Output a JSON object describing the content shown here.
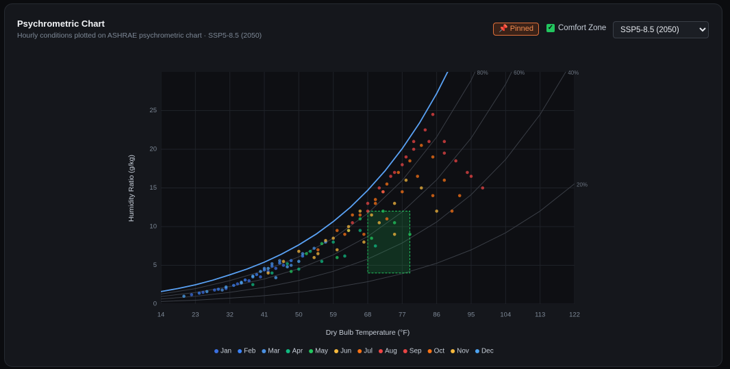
{
  "header": {
    "title": "Psychrometric Chart",
    "subtitle": "Hourly conditions plotted on ASHRAE psychrometric chart · SSP5-8.5 (2050)"
  },
  "controls": {
    "pinned": "📌 Pinned",
    "comfort_zone_label": "Comfort Zone",
    "comfort_zone_checked": true,
    "scenario": "SSP5-8.5 (2050)"
  },
  "chart_data": {
    "type": "scatter",
    "x_label": "Dry Bulb Temperature (°F)",
    "y_label": "Humidity Ratio (g/kg)",
    "xlim": [
      14,
      122
    ],
    "ylim": [
      0,
      30
    ],
    "xticks": [
      14,
      23,
      32,
      41,
      50,
      59,
      68,
      77,
      86,
      95,
      104,
      113,
      122
    ],
    "yticks": [
      0,
      5,
      10,
      15,
      20,
      25
    ],
    "grid": true,
    "saturation": {
      "color": "#5aa2f5",
      "x": [
        14,
        18.5,
        23,
        27.5,
        32,
        36.5,
        41,
        45.5,
        50,
        54.5,
        59,
        63.5,
        68,
        72.5,
        77,
        81.5,
        86,
        90.5
      ],
      "values": [
        1.6,
        2.0,
        2.48,
        3.07,
        3.77,
        4.52,
        5.4,
        6.44,
        7.64,
        9.02,
        10.65,
        12.52,
        14.7,
        17.2,
        20.08,
        23.38,
        27.2,
        31.6
      ]
    },
    "rh_curves": [
      {
        "label": "80%",
        "x": [
          14,
          23,
          32,
          41,
          50,
          59,
          68,
          77,
          86,
          95,
          104
        ],
        "values": [
          1.28,
          1.98,
          3.02,
          4.31,
          6.09,
          8.49,
          11.7,
          15.96,
          21.58,
          28.92,
          38.5
        ]
      },
      {
        "label": "60%",
        "x": [
          14,
          23,
          32,
          41,
          50,
          59,
          68,
          77,
          86,
          95,
          104,
          113
        ],
        "values": [
          0.96,
          1.48,
          2.26,
          3.23,
          4.56,
          6.34,
          8.73,
          11.89,
          16.05,
          21.44,
          28.41,
          37.47
        ]
      },
      {
        "label": "40%",
        "x": [
          14,
          23,
          32,
          41,
          50,
          59,
          68,
          77,
          86,
          95,
          104,
          113,
          122
        ],
        "values": [
          0.64,
          0.99,
          1.5,
          2.15,
          3.03,
          4.22,
          5.8,
          7.88,
          10.6,
          14.13,
          18.68,
          24.49,
          31.88
        ]
      },
      {
        "label": "20%",
        "x": [
          14,
          23,
          32,
          41,
          50,
          59,
          68,
          77,
          86,
          95,
          104,
          113,
          122
        ],
        "values": [
          0.32,
          0.49,
          0.75,
          1.07,
          1.51,
          2.1,
          2.88,
          3.91,
          5.26,
          6.99,
          9.2,
          12.01,
          15.54
        ]
      }
    ],
    "comfort_zone": {
      "color": "#22c55e",
      "xlim": [
        68,
        79
      ],
      "ylim": [
        4,
        12
      ]
    },
    "series": [
      {
        "name": "Jan",
        "color": "#3b6fe0",
        "x": [
          22,
          25,
          28,
          31,
          34,
          37,
          40,
          42,
          44,
          46
        ],
        "values": [
          1.2,
          1.5,
          1.8,
          2.0,
          2.6,
          3.0,
          3.5,
          4.2,
          4.6,
          5.0
        ]
      },
      {
        "name": "Feb",
        "color": "#3b82f6",
        "x": [
          24,
          29,
          33,
          36,
          39,
          41,
          43,
          45,
          48,
          51
        ],
        "values": [
          1.4,
          1.9,
          2.4,
          3.1,
          3.8,
          4.4,
          4.9,
          5.3,
          5.6,
          6.2
        ]
      },
      {
        "name": "Mar",
        "color": "#4a90e2",
        "x": [
          30,
          35,
          38,
          41,
          43,
          45,
          48,
          51,
          54,
          57
        ],
        "values": [
          1.8,
          2.7,
          3.5,
          4.6,
          5.2,
          5.6,
          5.0,
          6.5,
          7.2,
          8.0
        ]
      },
      {
        "name": "Apr",
        "color": "#10b981",
        "x": [
          38,
          43,
          47,
          50,
          53,
          56,
          59,
          62,
          66,
          70
        ],
        "values": [
          2.5,
          4.0,
          5.2,
          4.5,
          6.8,
          5.5,
          8.0,
          6.2,
          9.5,
          7.5
        ]
      },
      {
        "name": "May",
        "color": "#22c55e",
        "x": [
          48,
          52,
          56,
          60,
          63,
          66,
          69,
          72,
          75,
          79
        ],
        "values": [
          4.2,
          6.5,
          7.8,
          6.0,
          9.5,
          11.0,
          8.5,
          12.0,
          10.5,
          9.0
        ]
      },
      {
        "name": "Jun",
        "color": "#f5b83d",
        "x": [
          55,
          59,
          63,
          66,
          69,
          72,
          75,
          78,
          82,
          86
        ],
        "values": [
          6.5,
          8.5,
          10.0,
          12.0,
          11.5,
          14.5,
          13.0,
          16.0,
          15.0,
          12.0
        ]
      },
      {
        "name": "Jul",
        "color": "#f97316",
        "x": [
          62,
          66,
          70,
          73,
          76,
          79,
          82,
          85,
          88,
          92
        ],
        "values": [
          9.0,
          11.5,
          13.5,
          15.5,
          17.0,
          18.5,
          20.5,
          19.0,
          16.0,
          14.0
        ]
      },
      {
        "name": "Aug",
        "color": "#ef4444",
        "x": [
          68,
          72,
          75,
          78,
          80,
          83,
          85,
          88,
          91,
          95
        ],
        "values": [
          12.0,
          14.5,
          17.0,
          19.0,
          21.0,
          22.5,
          24.5,
          21.0,
          18.5,
          16.5
        ]
      },
      {
        "name": "Sep",
        "color": "#e84545",
        "x": [
          64,
          68,
          71,
          74,
          77,
          80,
          84,
          88,
          94,
          98
        ],
        "values": [
          10.5,
          13.0,
          15.0,
          16.5,
          18.0,
          20.0,
          21.0,
          19.5,
          17.0,
          15.0
        ]
      },
      {
        "name": "Oct",
        "color": "#f97316",
        "x": [
          55,
          60,
          64,
          67,
          70,
          73,
          77,
          81,
          85,
          90
        ],
        "values": [
          7.0,
          9.5,
          11.5,
          9.0,
          13.0,
          11.0,
          14.5,
          16.5,
          14.0,
          12.0
        ]
      },
      {
        "name": "Nov",
        "color": "#f5b83d",
        "x": [
          42,
          46,
          50,
          54,
          57,
          60,
          63,
          67,
          71,
          75
        ],
        "values": [
          4.0,
          5.5,
          6.8,
          6.0,
          8.2,
          7.0,
          9.5,
          8.0,
          10.5,
          9.0
        ]
      },
      {
        "name": "Dec",
        "color": "#4ea3f0",
        "x": [
          20,
          26,
          31,
          35,
          38,
          40,
          42,
          44,
          47,
          50
        ],
        "values": [
          1.0,
          1.6,
          2.2,
          2.8,
          3.6,
          4.2,
          4.6,
          3.4,
          4.8,
          5.5
        ]
      }
    ]
  }
}
